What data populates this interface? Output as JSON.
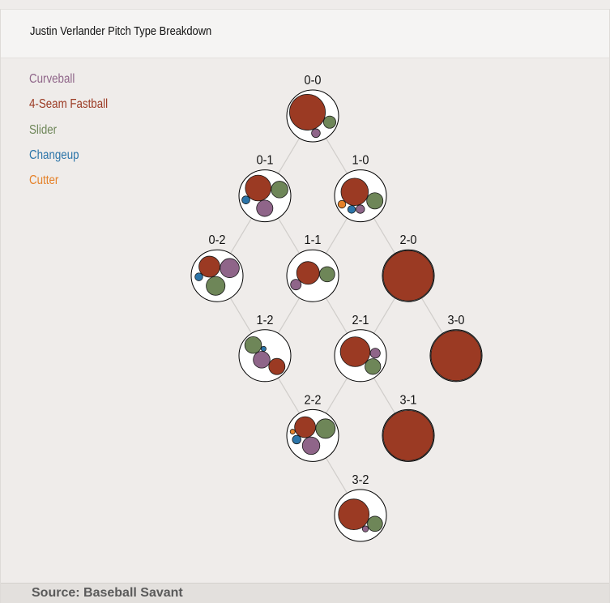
{
  "title": "Justin Verlander Pitch Type Breakdown",
  "source": "Source: Baseball Savant",
  "colors": {
    "background": "#efecea",
    "link_line": "#d0cdca",
    "outer_circle_fill": "#ffffff",
    "outer_circle_stroke": "#000000"
  },
  "pitch_types": [
    {
      "key": "curveball",
      "name": "Curveball",
      "color": "#8f6589"
    },
    {
      "key": "fastball",
      "name": "4-Seam Fastball",
      "color": "#9b3a23"
    },
    {
      "key": "slider",
      "name": "Slider",
      "color": "#6e8658"
    },
    {
      "key": "changeup",
      "name": "Changeup",
      "color": "#2c75a9"
    },
    {
      "key": "cutter",
      "name": "Cutter",
      "color": "#e5822a"
    }
  ],
  "chart_data": {
    "type": "bubble-tree",
    "title": "Justin Verlander Pitch Type Breakdown",
    "unit": "share of pitches thrown in each count (estimated from circle areas)",
    "counts": [
      {
        "label": "0-0",
        "balls": 0,
        "strikes": 0,
        "mix": {
          "fastball": 0.85,
          "slider": 0.1,
          "curveball": 0.05
        }
      },
      {
        "label": "0-1",
        "balls": 0,
        "strikes": 1,
        "mix": {
          "fastball": 0.52,
          "slider": 0.22,
          "curveball": 0.21,
          "changeup": 0.05
        }
      },
      {
        "label": "1-0",
        "balls": 1,
        "strikes": 0,
        "mix": {
          "fastball": 0.62,
          "slider": 0.22,
          "curveball": 0.06,
          "changeup": 0.05,
          "cutter": 0.05
        }
      },
      {
        "label": "0-2",
        "balls": 0,
        "strikes": 2,
        "mix": {
          "fastball": 0.36,
          "curveball": 0.3,
          "slider": 0.29,
          "changeup": 0.05
        }
      },
      {
        "label": "1-1",
        "balls": 1,
        "strikes": 1,
        "mix": {
          "fastball": 0.6,
          "slider": 0.27,
          "curveball": 0.13
        }
      },
      {
        "label": "2-0",
        "balls": 2,
        "strikes": 0,
        "mix": {
          "fastball": 1.0
        }
      },
      {
        "label": "1-2",
        "balls": 1,
        "strikes": 2,
        "mix": {
          "curveball": 0.33,
          "slider": 0.33,
          "fastball": 0.31,
          "changeup": 0.03
        }
      },
      {
        "label": "2-1",
        "balls": 2,
        "strikes": 1,
        "mix": {
          "fastball": 0.72,
          "slider": 0.2,
          "curveball": 0.08
        }
      },
      {
        "label": "3-0",
        "balls": 3,
        "strikes": 0,
        "mix": {
          "fastball": 1.0
        }
      },
      {
        "label": "2-2",
        "balls": 2,
        "strikes": 2,
        "mix": {
          "fastball": 0.36,
          "slider": 0.31,
          "curveball": 0.25,
          "changeup": 0.06,
          "cutter": 0.02
        }
      },
      {
        "label": "3-1",
        "balls": 3,
        "strikes": 1,
        "mix": {
          "fastball": 1.0
        }
      },
      {
        "label": "3-2",
        "balls": 3,
        "strikes": 2,
        "mix": {
          "fastball": 0.78,
          "slider": 0.19,
          "curveball": 0.03
        }
      }
    ]
  }
}
